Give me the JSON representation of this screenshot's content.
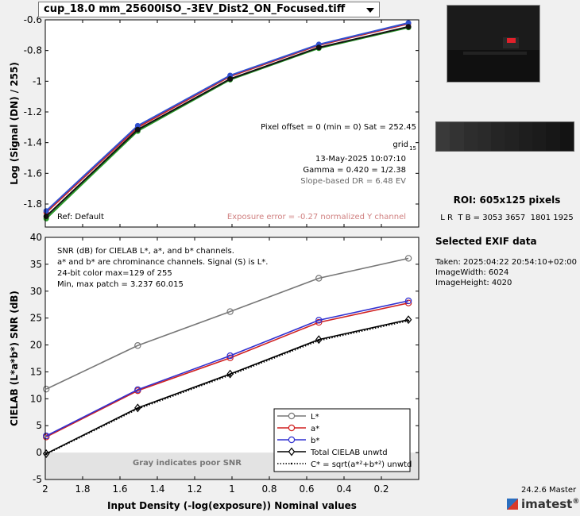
{
  "file_selector": {
    "value": "cup_18.0 mm_25600ISO_-3EV_Dist2_ON_Focused.tiff"
  },
  "chart_data": [
    {
      "type": "line",
      "ylabel": "Log (Signal (DN) / 255)",
      "xlim": [
        2,
        0
      ],
      "ylim": [
        -1.95,
        -0.6
      ],
      "x_ticks": [
        2,
        1.8,
        1.6,
        1.4,
        1.2,
        1,
        0.8,
        0.6,
        0.4,
        0.2
      ],
      "x_tick_labels": [
        "2",
        "1.8",
        "1.6",
        "1.4",
        "1.2",
        "1",
        "0.8",
        "0.6",
        "0.4",
        "0.2"
      ],
      "y_ticks": [
        -0.6,
        -0.8,
        -1,
        -1.2,
        -1.4,
        -1.6,
        -1.8
      ],
      "y_tick_labels": [
        "-0.6",
        "-0.8",
        "-1",
        "-1.2",
        "-1.4",
        "-1.6",
        "-1.8"
      ],
      "x": [
        1.995,
        1.505,
        1.01,
        0.535,
        0.055
      ],
      "series": [
        {
          "color": "#d02020",
          "values": [
            -1.855,
            -1.3,
            -0.968,
            -0.765,
            -0.625
          ]
        },
        {
          "color": "#2a9a2a",
          "values": [
            -1.895,
            -1.325,
            -0.99,
            -0.785,
            -0.65
          ]
        },
        {
          "color": "#3050d0",
          "values": [
            -1.845,
            -1.29,
            -0.962,
            -0.76,
            -0.62
          ]
        },
        {
          "color": "#111111",
          "values": [
            -1.88,
            -1.315,
            -0.985,
            -0.78,
            -0.645
          ]
        }
      ],
      "info": {
        "pixel_offset": "Pixel offset = 0  (min = 0)  Sat = 252.45",
        "grid": "grid",
        "grid_sub": "15",
        "date": "13-May-2025 10:07:10",
        "gamma": "Gamma = 0.420 = 1/2.38",
        "slope_dr": "Slope-based DR = 6.48 EV",
        "ref": "Ref: Default",
        "exposure_error": "Exposure error = -0.27 normalized Y channel"
      }
    },
    {
      "type": "line",
      "xlabel": "Input Density (-log(exposure))   Nominal values",
      "ylabel": "CIELAB (L*a*b*)  SNR (dB)",
      "xlim": [
        2,
        0
      ],
      "ylim": [
        -5,
        40
      ],
      "x_ticks": [
        2,
        1.8,
        1.6,
        1.4,
        1.2,
        1,
        0.8,
        0.6,
        0.4,
        0.2
      ],
      "x_tick_labels": [
        "2",
        "1.8",
        "1.6",
        "1.4",
        "1.2",
        "1",
        "0.8",
        "0.6",
        "0.4",
        "0.2"
      ],
      "y_ticks": [
        -5,
        0,
        5,
        10,
        15,
        20,
        25,
        30,
        35,
        40
      ],
      "y_tick_labels": [
        "-5",
        "0",
        "5",
        "10",
        "15",
        "20",
        "25",
        "30",
        "35",
        "40"
      ],
      "poor_snr_band": [
        -5,
        0
      ],
      "poor_snr_label": "Gray indicates poor SNR",
      "x": [
        1.995,
        1.505,
        1.01,
        0.535,
        0.055
      ],
      "series": [
        {
          "name": "L*",
          "color": "#777777",
          "marker": "circle",
          "style": "solid",
          "values": [
            11.8,
            19.9,
            26.2,
            32.4,
            36.1
          ]
        },
        {
          "name": "a*",
          "color": "#d02020",
          "marker": "circle",
          "style": "solid",
          "values": [
            2.9,
            11.5,
            17.6,
            24.2,
            27.8
          ]
        },
        {
          "name": "b*",
          "color": "#3030d0",
          "marker": "circle",
          "style": "solid",
          "values": [
            3.1,
            11.7,
            18.0,
            24.6,
            28.2
          ]
        },
        {
          "name": "Total CIELAB unwtd",
          "color": "#000000",
          "marker": "diamond",
          "style": "solid",
          "values": [
            -0.2,
            8.3,
            14.6,
            21.0,
            24.7
          ]
        },
        {
          "name": "C* = sqrt(a*²+b*²) unwtd",
          "color": "#000000",
          "marker": "dot",
          "style": "dotted",
          "values": [
            -0.3,
            8.1,
            14.4,
            20.8,
            24.5
          ]
        }
      ],
      "legend_position": "bottom-right",
      "notes": [
        "SNR (dB) for CIELAB L*, a*, and b* channels.",
        "a* and b* are chrominance channels. Signal (S) is L*.",
        "24-bit color  max=129 of 255",
        "Min, max patch = 3.237  60.015"
      ]
    }
  ],
  "roi": {
    "title": "ROI:  605x125 pixels",
    "coords": "L R  T B = 3053 3657  1801 1925"
  },
  "patch_colors": [
    "#3a3a3a",
    "#333333",
    "#2d2d2d",
    "#2a2a2a",
    "#252525",
    "#222222",
    "#1e1e1e",
    "#1b1b1b",
    "#171717",
    "#131313"
  ],
  "exif": {
    "title": "Selected EXIF data",
    "lines": [
      "Taken: 2025:04:22 20:54:10+02:00",
      "ImageWidth:  6024",
      "ImageHeight:  4020"
    ]
  },
  "version": "24.2.6 Master",
  "logo": {
    "name": "imatest",
    "reg": "®"
  }
}
